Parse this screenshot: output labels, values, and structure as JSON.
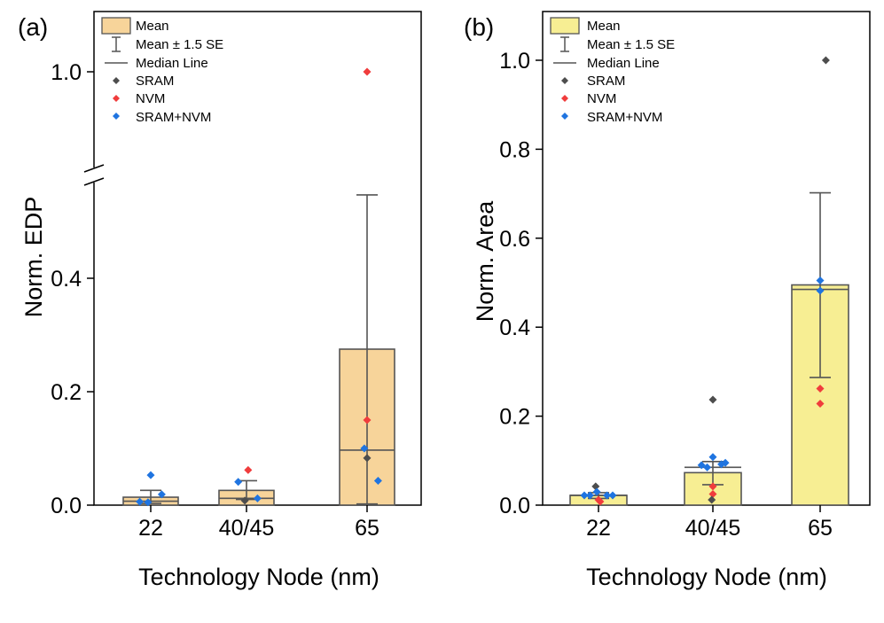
{
  "colors": {
    "fill_a": "#f7d49a",
    "fill_b": "#f7ee93",
    "stroke": "#555555",
    "sram": "#4d4d4d",
    "nvm": "#f03c3c",
    "sram_nvm": "#1f74e0"
  },
  "legend": {
    "mean": "Mean",
    "se": "Mean ± 1.5 SE",
    "median": "Median Line",
    "sram": "SRAM",
    "nvm": "NVM",
    "sram_nvm": "SRAM+NVM"
  },
  "chart_data": [
    {
      "type": "bar",
      "panel": "(a)",
      "ylabel": "Norm. EDP",
      "xlabel": "Technology Node (nm)",
      "categories": [
        "22",
        "40/45",
        "65"
      ],
      "y_axis_break": true,
      "lower_ylim": [
        0,
        0.6
      ],
      "upper_ylim": [
        0.85,
        1.1
      ],
      "yticks": [
        0.0,
        0.2,
        0.4,
        1.0
      ],
      "ytick_labels": [
        "0.0",
        "0.2",
        "0.4",
        "1.0"
      ],
      "mean": [
        0.014,
        0.026,
        0.275
      ],
      "se_low": [
        0.003,
        0.01,
        0.002
      ],
      "se_high": [
        0.026,
        0.043,
        0.547
      ],
      "median": [
        0.007,
        0.012,
        0.097
      ],
      "points": [
        {
          "cat": 0,
          "off": -0.2,
          "y": 0.006,
          "type": "sram_nvm"
        },
        {
          "cat": 0,
          "off": -0.05,
          "y": 0.005,
          "type": "sram_nvm"
        },
        {
          "cat": 0,
          "off": 0.0,
          "y": 0.053,
          "type": "sram_nvm"
        },
        {
          "cat": 0,
          "off": 0.2,
          "y": 0.019,
          "type": "sram_nvm"
        },
        {
          "cat": 1,
          "off": -0.15,
          "y": 0.041,
          "type": "sram_nvm"
        },
        {
          "cat": 1,
          "off": -0.03,
          "y": 0.008,
          "type": "sram"
        },
        {
          "cat": 1,
          "off": 0.03,
          "y": 0.062,
          "type": "nvm"
        },
        {
          "cat": 1,
          "off": 0.2,
          "y": 0.012,
          "type": "sram_nvm"
        },
        {
          "cat": 2,
          "off": -0.05,
          "y": 0.1,
          "type": "sram_nvm"
        },
        {
          "cat": 2,
          "off": 0.0,
          "y": 1.0,
          "type": "nvm"
        },
        {
          "cat": 2,
          "off": 0.0,
          "y": 0.15,
          "type": "nvm"
        },
        {
          "cat": 2,
          "off": 0.0,
          "y": 0.083,
          "type": "sram"
        },
        {
          "cat": 2,
          "off": 0.2,
          "y": 0.043,
          "type": "sram_nvm"
        }
      ]
    },
    {
      "type": "bar",
      "panel": "(b)",
      "ylabel": "Norm. Area",
      "xlabel": "Technology Node (nm)",
      "categories": [
        "22",
        "40/45",
        "65"
      ],
      "ylim": [
        0,
        1.1
      ],
      "yticks": [
        0.0,
        0.2,
        0.4,
        0.6,
        0.8,
        1.0
      ],
      "ytick_labels": [
        "0.0",
        "0.2",
        "0.4",
        "0.6",
        "0.8",
        "1.0"
      ],
      "mean": [
        0.022,
        0.073,
        0.495
      ],
      "se_low": [
        0.015,
        0.046,
        0.287
      ],
      "se_high": [
        0.028,
        0.098,
        0.702
      ],
      "median": [
        0.022,
        0.085,
        0.485
      ],
      "points": [
        {
          "cat": 0,
          "off": -0.25,
          "y": 0.022,
          "type": "sram_nvm"
        },
        {
          "cat": 0,
          "off": -0.15,
          "y": 0.022,
          "type": "sram_nvm"
        },
        {
          "cat": 0,
          "off": -0.05,
          "y": 0.042,
          "type": "sram"
        },
        {
          "cat": 0,
          "off": -0.03,
          "y": 0.03,
          "type": "sram_nvm"
        },
        {
          "cat": 0,
          "off": 0.0,
          "y": 0.012,
          "type": "nvm"
        },
        {
          "cat": 0,
          "off": 0.03,
          "y": 0.008,
          "type": "nvm"
        },
        {
          "cat": 0,
          "off": 0.15,
          "y": 0.022,
          "type": "sram_nvm"
        },
        {
          "cat": 0,
          "off": 0.25,
          "y": 0.022,
          "type": "sram_nvm"
        },
        {
          "cat": 1,
          "off": -0.2,
          "y": 0.09,
          "type": "sram_nvm"
        },
        {
          "cat": 1,
          "off": -0.1,
          "y": 0.085,
          "type": "sram_nvm"
        },
        {
          "cat": 1,
          "off": 0.0,
          "y": 0.237,
          "type": "sram"
        },
        {
          "cat": 1,
          "off": 0.0,
          "y": 0.108,
          "type": "sram_nvm"
        },
        {
          "cat": 1,
          "off": 0.0,
          "y": 0.042,
          "type": "nvm"
        },
        {
          "cat": 1,
          "off": 0.0,
          "y": 0.025,
          "type": "nvm"
        },
        {
          "cat": 1,
          "off": -0.02,
          "y": 0.012,
          "type": "sram"
        },
        {
          "cat": 1,
          "off": 0.15,
          "y": 0.092,
          "type": "sram_nvm"
        },
        {
          "cat": 1,
          "off": 0.22,
          "y": 0.095,
          "type": "sram_nvm"
        },
        {
          "cat": 2,
          "off": 0.1,
          "y": 1.0,
          "type": "sram"
        },
        {
          "cat": 2,
          "off": 0.0,
          "y": 0.505,
          "type": "sram_nvm"
        },
        {
          "cat": 2,
          "off": 0.0,
          "y": 0.482,
          "type": "sram_nvm"
        },
        {
          "cat": 2,
          "off": 0.0,
          "y": 0.262,
          "type": "nvm"
        },
        {
          "cat": 2,
          "off": 0.0,
          "y": 0.228,
          "type": "nvm"
        }
      ]
    }
  ]
}
